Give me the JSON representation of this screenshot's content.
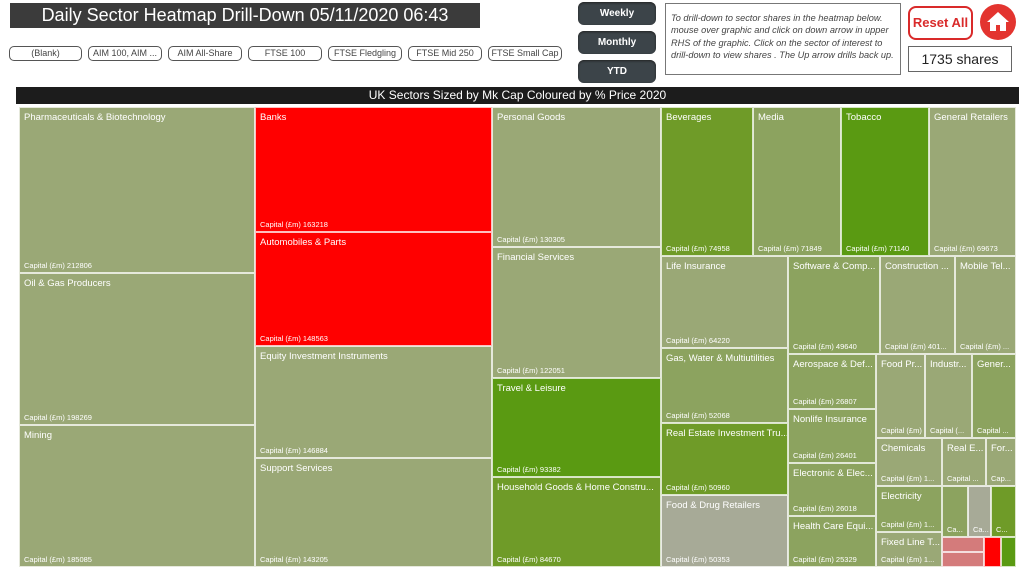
{
  "header": {
    "title": "Daily Sector Heatmap Drill-Down 05/11/2020 06:43"
  },
  "slicers": [
    "(Blank)",
    "AIM 100, AIM ...",
    "AIM All-Share",
    "FTSE 100",
    "FTSE Fledgling",
    "FTSE Mid 250",
    "FTSE Small Cap"
  ],
  "periods": [
    "Weekly",
    "Monthly",
    "YTD"
  ],
  "info": "To drill-down to sector shares in the heatmap below. mouse over graphic and click on down arrow in upper RHS of the graphic. Click on the sector of interest to drill-down to view shares . The Up arrow drills back up.",
  "reset_label": "Reset All",
  "share_count": "1735 shares",
  "chart_title": "UK Sectors Sized by Mk Cap Coloured by % Price 2020",
  "colors": {
    "bright_green": "#5a9a12",
    "olive": "#9aa876",
    "grey": "#a7aa97",
    "red": "#ff0000",
    "home": "#e3342f"
  },
  "chart_data": {
    "type": "treemap",
    "title": "UK Sectors Sized by Mk Cap Coloured by % Price 2020",
    "size_measure": "Capital (£m)",
    "tiles": [
      {
        "name": "Pharmaceuticals & Biotechnology",
        "capital": "Capital (£m) 212806"
      },
      {
        "name": "Oil & Gas Producers",
        "capital": "Capital (£m) 198269"
      },
      {
        "name": "Mining",
        "capital": "Capital (£m) 185085"
      },
      {
        "name": "Banks",
        "capital": "Capital (£m) 163218"
      },
      {
        "name": "Automobiles & Parts",
        "capital": "Capital (£m) 148563"
      },
      {
        "name": "Equity Investment Instruments",
        "capital": "Capital (£m) 146884"
      },
      {
        "name": "Support Services",
        "capital": "Capital (£m) 143205"
      },
      {
        "name": "Personal Goods",
        "capital": "Capital (£m) 130305"
      },
      {
        "name": "Financial Services",
        "capital": "Capital (£m) 122051"
      },
      {
        "name": "Travel & Leisure",
        "capital": "Capital (£m) 93382"
      },
      {
        "name": "Household Goods & Home Constru...",
        "capital": "Capital (£m) 84670"
      },
      {
        "name": "Beverages",
        "capital": "Capital (£m) 74958"
      },
      {
        "name": "Media",
        "capital": "Capital (£m) 71849"
      },
      {
        "name": "Tobacco",
        "capital": "Capital (£m) 71140"
      },
      {
        "name": "General Retailers",
        "capital": "Capital (£m) 69673"
      },
      {
        "name": "Life Insurance",
        "capital": "Capital (£m) 64220"
      },
      {
        "name": "Gas, Water & Multiutilities",
        "capital": "Capital (£m) 52068"
      },
      {
        "name": "Real Estate Investment Tru...",
        "capital": "Capital (£m) 50960"
      },
      {
        "name": "Food & Drug Retailers",
        "capital": "Capital (£m) 50353"
      },
      {
        "name": "Software & Comp...",
        "capital": "Capital (£m) 49640"
      },
      {
        "name": "Construction ...",
        "capital": "Capital (£m) 401..."
      },
      {
        "name": "Mobile Tel...",
        "capital": "Capital (£m) ..."
      },
      {
        "name": "Aerospace & Def...",
        "capital": "Capital (£m) 26807"
      },
      {
        "name": "Food Pr...",
        "capital": "Capital (£m) ..."
      },
      {
        "name": "Industr...",
        "capital": "Capital (..."
      },
      {
        "name": "Gener...",
        "capital": "Capital ..."
      },
      {
        "name": "Nonlife Insurance",
        "capital": "Capital (£m) 26401"
      },
      {
        "name": "Electronic & Elec...",
        "capital": "Capital (£m) 26018"
      },
      {
        "name": "Health Care Equi...",
        "capital": "Capital (£m) 25329"
      },
      {
        "name": "Chemicals",
        "capital": "Capital (£m) 1..."
      },
      {
        "name": "Real E...",
        "capital": "Capital ..."
      },
      {
        "name": "For...",
        "capital": "Cap..."
      },
      {
        "name": "Electricity",
        "capital": "Capital (£m) 1..."
      },
      {
        "name": "Fixed Line T...",
        "capital": "Capital (£m) 1..."
      },
      {
        "name": "",
        "capital": "Ca..."
      },
      {
        "name": "",
        "capital": "Ca..."
      },
      {
        "name": "",
        "capital": "C..."
      }
    ]
  }
}
